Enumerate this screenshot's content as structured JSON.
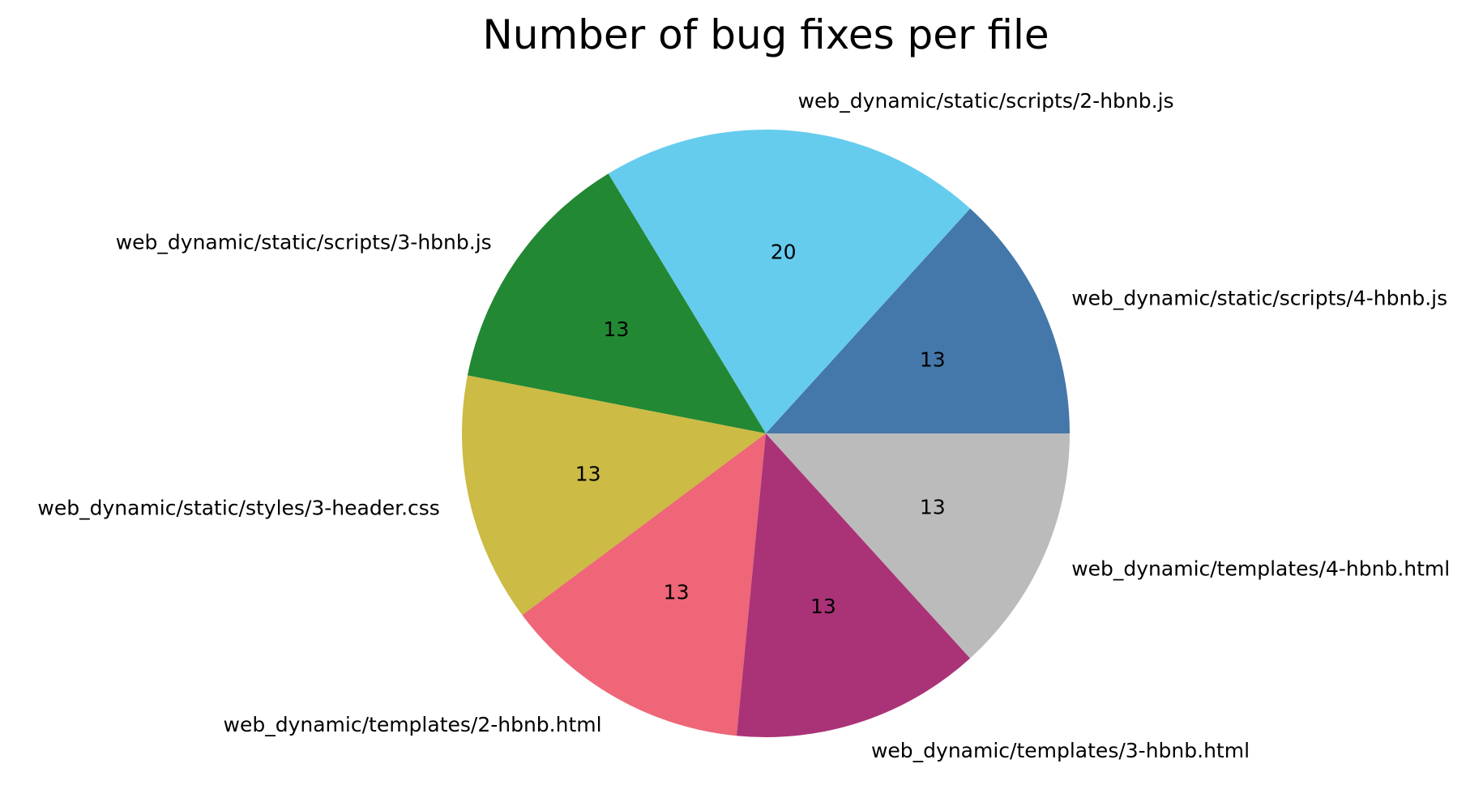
{
  "chart_data": {
    "type": "pie",
    "title": "Number of bug fixes per file",
    "start_angle_deg": 0,
    "direction": "counterclockwise",
    "slices": [
      {
        "label": "web_dynamic/static/scripts/4-hbnb.js",
        "value": 13,
        "color": "#4477aa"
      },
      {
        "label": "web_dynamic/static/scripts/2-hbnb.js",
        "value": 20,
        "color": "#66ccee"
      },
      {
        "label": "web_dynamic/static/scripts/3-hbnb.js",
        "value": 13,
        "color": "#228833"
      },
      {
        "label": "web_dynamic/static/styles/3-header.css",
        "value": 13,
        "color": "#ccbb44"
      },
      {
        "label": "web_dynamic/templates/2-hbnb.html",
        "value": 13,
        "color": "#ee6677"
      },
      {
        "label": "web_dynamic/templates/3-hbnb.html",
        "value": 13,
        "color": "#aa3377"
      },
      {
        "label": "web_dynamic/templates/4-hbnb.html",
        "value": 13,
        "color": "#bbbbbb"
      }
    ]
  }
}
